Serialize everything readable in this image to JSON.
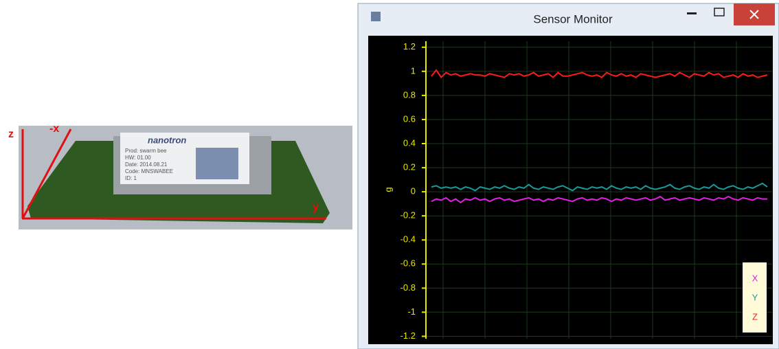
{
  "photo": {
    "annotations": {
      "z": "z",
      "x": "-x",
      "y": "y"
    },
    "label": {
      "brand": "nanotron",
      "lines": [
        "Prod: swarm bee",
        "HW: 01.00",
        "Date: 2014.08.21",
        "Code: MNSWABEE",
        "ID: 1"
      ]
    }
  },
  "window": {
    "title": "Sensor Monitor"
  },
  "chart_data": {
    "type": "line",
    "y_label": "g",
    "ylim": [
      -1.22,
      1.25
    ],
    "yticks": [
      1.2,
      1,
      0.8,
      0.6,
      0.4,
      0.2,
      0,
      -0.2,
      -0.4,
      -0.6,
      -0.8,
      -1,
      -1.2
    ],
    "grid": true,
    "legend": "lower right",
    "series": [
      {
        "name": "X",
        "color": "#e020e0",
        "values": [
          -0.08,
          -0.06,
          -0.07,
          -0.05,
          -0.08,
          -0.06,
          -0.09,
          -0.06,
          -0.07,
          -0.05,
          -0.07,
          -0.06,
          -0.08,
          -0.06,
          -0.05,
          -0.07,
          -0.06,
          -0.08,
          -0.07,
          -0.06,
          -0.05,
          -0.07,
          -0.06,
          -0.08,
          -0.06,
          -0.07,
          -0.05,
          -0.06,
          -0.07,
          -0.08,
          -0.06,
          -0.05,
          -0.07,
          -0.06,
          -0.07,
          -0.05,
          -0.06,
          -0.08,
          -0.06,
          -0.07,
          -0.05,
          -0.06,
          -0.07,
          -0.06,
          -0.05,
          -0.07,
          -0.06,
          -0.04,
          -0.07,
          -0.06,
          -0.05,
          -0.07,
          -0.06,
          -0.05,
          -0.06,
          -0.07,
          -0.05,
          -0.06,
          -0.07,
          -0.05,
          -0.06,
          -0.04,
          -0.06,
          -0.07,
          -0.05,
          -0.06,
          -0.07,
          -0.05,
          -0.06,
          -0.06
        ]
      },
      {
        "name": "Y",
        "color": "#1a9a9a",
        "values": [
          0.04,
          0.05,
          0.03,
          0.04,
          0.03,
          0.04,
          0.02,
          0.04,
          0.03,
          0.01,
          0.04,
          0.03,
          0.02,
          0.04,
          0.03,
          0.05,
          0.03,
          0.02,
          0.04,
          0.03,
          0.06,
          0.03,
          0.02,
          0.04,
          0.03,
          0.02,
          0.04,
          0.05,
          0.03,
          0.01,
          0.04,
          0.03,
          0.02,
          0.04,
          0.03,
          0.04,
          0.02,
          0.05,
          0.03,
          0.02,
          0.04,
          0.03,
          0.04,
          0.02,
          0.05,
          0.03,
          0.02,
          0.03,
          0.04,
          0.06,
          0.03,
          0.02,
          0.04,
          0.05,
          0.03,
          0.02,
          0.04,
          0.03,
          0.06,
          0.03,
          0.02,
          0.04,
          0.05,
          0.03,
          0.02,
          0.04,
          0.03,
          0.05,
          0.07,
          0.04
        ]
      },
      {
        "name": "Z",
        "color": "#ff1a1a",
        "values": [
          0.96,
          1.01,
          0.95,
          0.99,
          0.97,
          0.98,
          0.96,
          0.97,
          0.98,
          0.97,
          0.97,
          0.96,
          0.98,
          0.97,
          0.96,
          0.95,
          0.98,
          0.97,
          0.98,
          0.96,
          0.97,
          0.99,
          0.96,
          0.97,
          0.98,
          0.95,
          0.99,
          0.96,
          0.96,
          0.97,
          0.98,
          0.99,
          0.97,
          0.96,
          0.97,
          0.95,
          0.99,
          0.97,
          0.96,
          0.98,
          0.96,
          0.97,
          0.95,
          0.98,
          0.97,
          0.96,
          0.95,
          0.96,
          0.97,
          0.98,
          0.96,
          0.99,
          0.97,
          0.95,
          0.98,
          0.97,
          0.96,
          0.99,
          0.97,
          0.98,
          0.95,
          0.96,
          0.97,
          0.95,
          0.98,
          0.96,
          0.97,
          0.95,
          0.96,
          0.97
        ]
      }
    ]
  }
}
